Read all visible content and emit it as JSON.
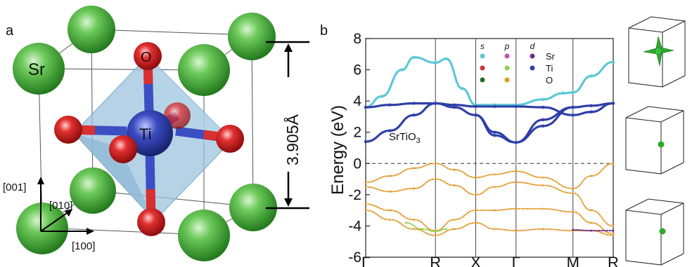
{
  "panel_a": {
    "letter": "a",
    "atom_sr": "Sr",
    "atom_ti": "Ti",
    "atom_o": "O",
    "lattice_constant": "3.905Å",
    "axis_001": "[001]",
    "axis_010": "[010]",
    "axis_100": "[100]",
    "colors": {
      "sr": "#3aa52e",
      "ti": "#2e3d9e",
      "o": "#d41f1f",
      "octahedron": "#9cc3dd"
    }
  },
  "panel_b": {
    "letter": "b",
    "material": "SrTiO",
    "material_sub": "3",
    "legend": {
      "headers": [
        "s",
        "p",
        "d"
      ],
      "rows": [
        {
          "label": "Sr",
          "colors": [
            "#5bc8d6",
            "#c24fc6",
            "#6a2a8a"
          ]
        },
        {
          "label": "Ti",
          "colors": [
            "#d0333a",
            "#8fd14f",
            "#2f3fa8"
          ]
        },
        {
          "label": "O",
          "colors": [
            "#1e6b2e",
            "#e39a2d",
            ""
          ]
        }
      ]
    }
  },
  "chart_data": {
    "type": "line",
    "title": "",
    "ylabel": "Energy (eV)",
    "xlabel": "",
    "ylim": [
      -6,
      8
    ],
    "yticks": [
      -6,
      -4,
      -2,
      0,
      2,
      4,
      6,
      8
    ],
    "x_ticks": [
      "Γ",
      "R",
      "X",
      "Γ",
      "M",
      "R"
    ],
    "x_tick_positions": [
      0,
      0.866,
      1.366,
      1.866,
      2.573,
      3.073
    ],
    "fermi_level": 0,
    "grid": false,
    "series": [
      {
        "component": "conduction-top",
        "color": "#5bc8d6",
        "x": [
          0,
          0.2,
          0.45,
          0.6,
          0.866,
          1.0,
          1.2,
          1.366,
          1.6,
          1.866,
          2.2,
          2.45,
          2.573,
          2.8,
          3.073
        ],
        "y": [
          3.6,
          4.3,
          6.0,
          6.8,
          6.45,
          6.7,
          4.8,
          3.75,
          3.75,
          3.75,
          4.1,
          4.5,
          4.55,
          5.6,
          6.5
        ]
      },
      {
        "component": "conduction-ti-d-1",
        "color": "#2f3fa8",
        "x": [
          0,
          0.3,
          0.6,
          0.866,
          1.1,
          1.366,
          1.6,
          1.866,
          2.2,
          2.573,
          2.8,
          3.073
        ],
        "y": [
          3.6,
          3.75,
          3.85,
          3.85,
          3.75,
          3.65,
          3.65,
          3.65,
          3.6,
          3.1,
          3.3,
          3.85
        ]
      },
      {
        "component": "conduction-ti-d-2",
        "color": "#2f3fa8",
        "x": [
          0,
          0.3,
          0.6,
          0.866,
          1.1,
          1.366,
          1.6,
          1.866,
          2.2,
          2.573,
          2.8,
          3.073
        ],
        "y": [
          1.4,
          2.1,
          3.1,
          3.85,
          3.6,
          3.1,
          2.0,
          1.35,
          2.8,
          3.6,
          3.7,
          3.85
        ]
      },
      {
        "component": "conduction-ti-d-3",
        "color": "#2f3fa8",
        "x": [
          1.366,
          1.6,
          1.866,
          2.2,
          2.573
        ],
        "y": [
          3.1,
          1.8,
          1.35,
          2.4,
          3.6
        ]
      },
      {
        "component": "valence-o-p-1",
        "color": "#e39a2d",
        "x": [
          0,
          0.3,
          0.6,
          0.866,
          1.1,
          1.366,
          1.6,
          1.866,
          2.2,
          2.573,
          2.8,
          3.073
        ],
        "y": [
          -1.2,
          -0.8,
          -0.3,
          0.0,
          -0.4,
          -0.9,
          -0.7,
          -0.5,
          -0.9,
          -1.6,
          -0.8,
          0.0
        ]
      },
      {
        "component": "valence-o-p-2",
        "color": "#e39a2d",
        "x": [
          0,
          0.3,
          0.6,
          0.866,
          1.1,
          1.366,
          1.6,
          1.866,
          2.2,
          2.573,
          2.8,
          3.073
        ],
        "y": [
          -1.5,
          -1.8,
          -1.6,
          -1.0,
          -1.4,
          -2.0,
          -1.5,
          -1.2,
          -1.4,
          -1.9,
          -3.0,
          -4.0
        ]
      },
      {
        "component": "valence-o-p-3",
        "color": "#e39a2d",
        "x": [
          0,
          0.3,
          0.6,
          0.866,
          1.1,
          1.366,
          1.6,
          1.866,
          2.2,
          2.573,
          2.8,
          3.073
        ],
        "y": [
          -2.6,
          -3.0,
          -3.6,
          -4.3,
          -3.6,
          -3.0,
          -3.0,
          -2.9,
          -2.9,
          -3.1,
          -3.8,
          -4.5
        ]
      },
      {
        "component": "valence-o-p-4",
        "color": "#e39a2d",
        "x": [
          0,
          0.3,
          0.6,
          0.866,
          1.1,
          1.366,
          1.6,
          1.866,
          2.2,
          2.573,
          2.8,
          3.073
        ],
        "y": [
          -3.0,
          -3.6,
          -4.2,
          -4.6,
          -4.2,
          -3.8,
          -4.2,
          -4.3,
          -4.2,
          -4.3,
          -4.3,
          -4.6
        ]
      },
      {
        "component": "valence-ti-p-near-R",
        "color": "#8fd14f",
        "x": [
          0.5,
          0.7,
          0.866,
          1.0
        ],
        "y": [
          -3.8,
          -4.2,
          -4.35,
          -4.2
        ]
      },
      {
        "component": "valence-sr-d-near-M",
        "color": "#6a2a8a",
        "x": [
          2.573,
          2.8,
          3.073
        ],
        "y": [
          -4.25,
          -4.3,
          -4.3
        ]
      }
    ]
  },
  "panel_c": {
    "isosurfaces": [
      "star-shaped",
      "small-sphere",
      "small-sphere"
    ],
    "colors": {
      "iso": "#2ea82e"
    }
  }
}
